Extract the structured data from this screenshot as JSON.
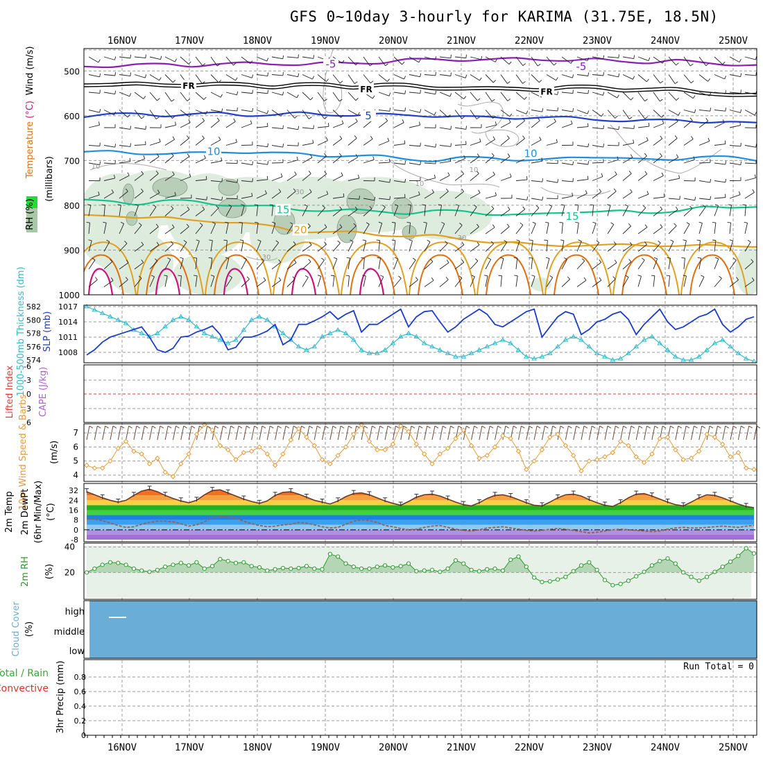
{
  "title": "GFS 0~10day 3-hourly for KARIMA (31.75E, 18.5N)",
  "colors": {
    "grid": "#9a9a9a",
    "temp_neg5": "#8b1fb4",
    "temp_fr": "#000000",
    "temp_5": "#1f3fcf",
    "temp_10": "#1e8fe0",
    "temp_15": "#12c48a",
    "temp_20": "#e0a020",
    "temp_25": "#e07010",
    "temp_30": "#d0107a",
    "rh_fill_light": "#dcebdc",
    "rh_fill_mid": "#b9ceb9",
    "rh_fill_dark": "#98a998",
    "slp": "#1a3ccc",
    "thickness": "#33bbcc",
    "lifted_index": "#e03a3a",
    "cape": "#b060d0",
    "wind10": "#e79b3a",
    "barb": "#6b4a3a",
    "dewpoint": "#9a6050",
    "rh2m_line": "#2a9a2a",
    "rh2m_fill": "#b5d6b5",
    "rh2m_bg": "#e7f1e7",
    "cloud": "#6aaed8",
    "precip_total": "#33aa33",
    "precip_conv": "#e03030"
  },
  "chart_data": [
    {
      "panel": "upper_air",
      "type": "line",
      "x_dates": [
        "16NOV",
        "17NOV",
        "18NOV",
        "19NOV",
        "20NOV",
        "21NOV",
        "22NOV",
        "23NOV",
        "24NOV",
        "25NOV"
      ],
      "ylabel_parts": [
        "RH (%)",
        "Temperature",
        "(°C)",
        "Wind (m/s)"
      ],
      "ylabel_units": "(millibars)",
      "y_ticks": [
        500,
        600,
        700,
        800,
        900,
        1000
      ],
      "ylim": [
        450,
        1000
      ],
      "isotherm_labels": [
        {
          "label": "-5",
          "level": 485
        },
        {
          "label": "-5",
          "level": 490
        },
        {
          "label": "FR",
          "level": 532
        },
        {
          "label": "FR",
          "level": 540
        },
        {
          "label": "FR",
          "level": 545
        },
        {
          "label": "5",
          "level": 600
        },
        {
          "label": "10",
          "level": 680
        },
        {
          "label": "10",
          "level": 685
        },
        {
          "label": "15",
          "level": 810
        },
        {
          "label": "15",
          "level": 825
        },
        {
          "label": "20",
          "level": 855
        }
      ],
      "rh_labels": [
        "10",
        "30",
        "10",
        "10",
        "30",
        "30"
      ],
      "series": [
        {
          "name": "-5",
          "levels": [
            490,
            488,
            487,
            486,
            487,
            485,
            484,
            483,
            485,
            484,
            482,
            480,
            476,
            475,
            474,
            475,
            474,
            473,
            476,
            476,
            478,
            480,
            478,
            482,
            484,
            488
          ]
        },
        {
          "name": "FR",
          "levels": [
            532,
            533,
            535,
            534,
            533,
            535,
            534,
            536,
            535,
            536,
            537,
            534,
            538,
            540,
            540,
            545,
            543,
            542,
            541,
            541,
            543,
            545,
            547,
            550,
            555,
            560
          ]
        },
        {
          "name": "5",
          "levels": [
            600,
            598,
            597,
            598,
            597,
            596,
            598,
            597,
            596,
            598,
            597,
            598,
            600,
            599,
            602,
            605,
            604,
            603,
            606,
            608,
            610,
            612,
            610,
            612,
            615,
            618
          ]
        },
        {
          "name": "10",
          "levels": [
            680,
            682,
            684,
            683,
            685,
            682,
            680,
            684,
            686,
            688,
            690,
            692,
            695,
            700,
            696,
            693,
            697,
            700,
            695,
            690,
            695,
            700,
            696,
            690,
            695,
            700
          ]
        },
        {
          "name": "15",
          "levels": [
            790,
            792,
            795,
            790,
            793,
            797,
            800,
            805,
            810,
            810,
            812,
            815,
            816,
            813,
            815,
            818,
            820,
            822,
            815,
            812,
            815,
            818,
            810,
            805,
            808,
            800
          ]
        },
        {
          "name": "20",
          "levels": [
            825,
            822,
            826,
            830,
            833,
            835,
            842,
            848,
            856,
            860,
            862,
            865,
            868,
            870,
            875,
            880,
            885,
            890,
            888,
            890,
            890,
            888,
            890,
            892,
            890,
            890
          ]
        }
      ]
    },
    {
      "panel": "slp_thickness",
      "type": "line",
      "ylabel_left": "1000-500mb Thickness (dm)",
      "ylabel_right": "SLP (mb)",
      "thickness_ticks": [
        574,
        576,
        578,
        580,
        582
      ],
      "slp_ticks": [
        1008,
        1011,
        1014,
        1017
      ],
      "series": [
        {
          "name": "SLP",
          "values": [
            1007.5,
            1008.5,
            1010.0,
            1011.0,
            1011.5,
            1012.0,
            1012.5,
            1013.0,
            1011.0,
            1008.5,
            1008.0,
            1008.8,
            1011.0,
            1011.2,
            1012.0,
            1012.5,
            1013.2,
            1011.5,
            1008.5,
            1009.0,
            1011.0,
            1011.0,
            1011.5,
            1012.2,
            1013.5,
            1009.5,
            1010.5,
            1013.5,
            1013.5,
            1014.2,
            1015.0,
            1016.0,
            1014.5,
            1015.5,
            1016.2,
            1012.0,
            1013.5,
            1013.5,
            1014.5,
            1015.5,
            1016.5,
            1013.0,
            1015.0,
            1016.0,
            1016.2,
            1014.0,
            1012.0,
            1013.0,
            1014.5,
            1015.5,
            1016.5,
            1015.5,
            1013.5,
            1013.0,
            1014.0,
            1015.0,
            1016.0,
            1016.5,
            1011.0,
            1013.0,
            1015.0,
            1016.0,
            1015.5,
            1011.5,
            1012.5,
            1014.0,
            1014.5,
            1015.5,
            1016.0,
            1014.5,
            1011.5,
            1013.5,
            1015.0,
            1016.5,
            1014.0,
            1012.5,
            1013.0,
            1014.0,
            1015.0,
            1015.5,
            1016.5,
            1013.5,
            1012.0,
            1013.0,
            1014.5,
            1015.0
          ]
        },
        {
          "name": "1000-500mb Thickness",
          "values": [
            582.0,
            581.5,
            581.0,
            580.5,
            580.0,
            579.5,
            578.5,
            578.0,
            577.5,
            578.0,
            579.0,
            580.0,
            580.5,
            580.0,
            579.0,
            578.0,
            577.5,
            577.0,
            576.5,
            577.0,
            578.5,
            580.0,
            580.5,
            580.0,
            579.0,
            578.0,
            577.0,
            576.0,
            575.5,
            576.0,
            577.5,
            578.0,
            578.5,
            578.0,
            577.0,
            575.5,
            575.0,
            575.0,
            575.5,
            576.5,
            577.5,
            578.0,
            577.5,
            576.5,
            576.0,
            575.5,
            575.0,
            574.5,
            574.5,
            575.0,
            575.5,
            576.0,
            576.5,
            577.0,
            576.5,
            575.5,
            574.5,
            574.2,
            574.5,
            575.0,
            576.0,
            577.0,
            577.5,
            577.0,
            576.0,
            575.0,
            574.5,
            574.0,
            574.2,
            575.0,
            576.0,
            577.0,
            577.5,
            576.5,
            575.5,
            574.5,
            574.0,
            574.0,
            574.5,
            575.5,
            576.5,
            577.0,
            576.0,
            575.0,
            574.2,
            573.8
          ]
        }
      ]
    },
    {
      "panel": "li_cape",
      "type": "line",
      "ylabel_left": "Lifted Index",
      "ylabel_right": "CAPE (J/kg)",
      "li_ticks": [
        "-6",
        "-3",
        "0",
        "3",
        "6"
      ],
      "lifted_index_zero": 0
    },
    {
      "panel": "wind10",
      "type": "line",
      "ylabel": [
        "10m Wind Speed & Barbs",
        "(m/s)"
      ],
      "y_ticks": [
        4,
        5,
        6,
        7
      ],
      "ylim": [
        3.8,
        7.5
      ],
      "series": [
        {
          "name": "10m Wind Speed",
          "values": [
            4.7,
            4.5,
            4.5,
            5.0,
            5.9,
            6.4,
            5.7,
            5.5,
            4.8,
            5.2,
            4.2,
            3.9,
            4.8,
            5.5,
            6.9,
            7.6,
            7.2,
            6.1,
            5.8,
            5.1,
            5.6,
            5.7,
            6.0,
            5.5,
            4.7,
            5.5,
            6.5,
            7.3,
            6.7,
            6.1,
            5.1,
            4.8,
            5.4,
            6.0,
            6.9,
            7.6,
            6.4,
            5.8,
            5.8,
            6.2,
            7.5,
            7.1,
            6.2,
            5.5,
            4.8,
            5.5,
            5.9,
            6.6,
            7.2,
            6.1,
            5.2,
            5.4,
            6.0,
            6.8,
            6.6,
            5.7,
            4.4,
            5.0,
            5.8,
            6.7,
            6.9,
            6.1,
            5.4,
            4.3,
            5.0,
            5.1,
            5.3,
            5.6,
            6.4,
            6.1,
            5.3,
            4.9,
            5.5,
            6.6,
            6.7,
            5.8,
            5.1,
            5.2,
            5.7,
            6.9,
            6.7,
            6.2,
            5.3,
            5.6,
            4.5,
            4.4
          ]
        }
      ]
    },
    {
      "panel": "temp2m",
      "type": "area",
      "ylabel": [
        "2m Temp",
        "2m DewPt",
        "(6hr Min/Max)",
        "(°C)"
      ],
      "y_ticks": [
        -8,
        0,
        8,
        16,
        24,
        32
      ],
      "ylim": [
        -8,
        36
      ],
      "series": [
        {
          "name": "2m Temp",
          "values": [
            31.0,
            28.5,
            26.0,
            24.0,
            22.5,
            24.0,
            28.0,
            31.5,
            33.0,
            31.0,
            28.0,
            25.5,
            23.5,
            22.0,
            24.0,
            28.5,
            32.0,
            32.5,
            30.0,
            27.5,
            25.0,
            23.0,
            21.5,
            23.5,
            28.0,
            30.5,
            31.0,
            29.0,
            26.5,
            24.0,
            22.5,
            21.0,
            23.5,
            27.0,
            29.5,
            30.0,
            28.5,
            26.0,
            23.5,
            21.5,
            20.0,
            23.0,
            26.5,
            28.5,
            29.0,
            27.5,
            25.0,
            22.5,
            20.5,
            19.5,
            22.0,
            25.5,
            28.0,
            28.5,
            27.0,
            24.5,
            22.0,
            20.0,
            19.5,
            22.5,
            26.0,
            28.5,
            29.0,
            27.5,
            24.5,
            22.0,
            20.0,
            19.0,
            22.0,
            26.0,
            29.0,
            29.5,
            27.5,
            25.0,
            22.5,
            20.5,
            19.5,
            22.5,
            26.0,
            28.5,
            28.0,
            26.0,
            23.5,
            21.0,
            19.0,
            18.0
          ]
        },
        {
          "name": "2m DewPt",
          "values": [
            9.0,
            8.5,
            7.5,
            5.5,
            3.5,
            2.0,
            2.5,
            4.5,
            6.0,
            7.0,
            7.0,
            6.5,
            5.0,
            3.0,
            4.0,
            6.5,
            10.0,
            11.0,
            10.5,
            9.5,
            7.0,
            5.0,
            3.5,
            2.5,
            3.0,
            4.0,
            4.5,
            6.0,
            5.5,
            4.0,
            2.5,
            1.5,
            2.0,
            4.5,
            7.0,
            8.0,
            7.5,
            6.0,
            3.5,
            2.5,
            1.0,
            0.0,
            0.5,
            2.0,
            3.0,
            3.5,
            2.0,
            0.5,
            -0.5,
            -1.0,
            0.0,
            1.5,
            2.0,
            2.5,
            1.5,
            0.5,
            -0.5,
            -1.0,
            -0.5,
            0.5,
            1.0,
            0.5,
            -0.5,
            -1.5,
            -2.5,
            -2.0,
            -1.0,
            0.0,
            0.5,
            0.0,
            -0.5,
            -1.0,
            -1.5,
            -1.0,
            0.5,
            1.5,
            2.0,
            1.5,
            1.5,
            2.0,
            2.5,
            3.0,
            2.5,
            2.0,
            3.0,
            3.5
          ]
        }
      ]
    },
    {
      "panel": "rh2m",
      "type": "area",
      "ylabel": [
        "2m RH",
        "(%)"
      ],
      "y_ticks": [
        20,
        40
      ],
      "ylim": [
        0,
        42
      ],
      "series": [
        {
          "name": "2m RH",
          "values": [
            20.0,
            23.0,
            26.0,
            28.0,
            27.5,
            26.0,
            23.0,
            21.5,
            20.5,
            22.0,
            24.5,
            26.0,
            27.5,
            25.5,
            28.0,
            23.0,
            25.0,
            30.5,
            29.0,
            27.5,
            28.0,
            25.0,
            24.0,
            21.5,
            22.5,
            23.5,
            23.0,
            23.5,
            25.0,
            23.0,
            22.5,
            34.5,
            32.5,
            27.0,
            24.5,
            23.0,
            23.0,
            24.5,
            25.5,
            24.0,
            25.0,
            27.0,
            21.0,
            21.5,
            22.0,
            20.5,
            23.0,
            29.5,
            27.0,
            22.0,
            21.0,
            22.5,
            23.0,
            21.5,
            30.0,
            32.5,
            24.5,
            16.0,
            12.5,
            13.0,
            14.5,
            16.5,
            21.0,
            25.5,
            28.0,
            22.0,
            14.0,
            10.0,
            11.0,
            13.5,
            17.0,
            20.5,
            25.5,
            29.0,
            31.0,
            27.0,
            20.0,
            16.5,
            13.5,
            16.5,
            20.5,
            24.5,
            28.5,
            33.0,
            39.0,
            35.0
          ]
        }
      ]
    },
    {
      "panel": "cloud",
      "type": "area",
      "ylabel": [
        "Cloud Cover",
        "(%)"
      ],
      "y_ticks": [
        "high",
        "middle",
        "low"
      ],
      "cover_percent": 100
    },
    {
      "panel": "precip",
      "type": "bar",
      "ylabel_left": [
        "Total / Rain",
        "Convective"
      ],
      "ylabel_units": "3hr Precip (mm)",
      "y_ticks": [
        "0",
        "0.2",
        "0.4",
        "0.6",
        "0.8"
      ],
      "ylim": [
        0,
        1
      ],
      "run_total": "Run Total = 0",
      "values": []
    }
  ]
}
